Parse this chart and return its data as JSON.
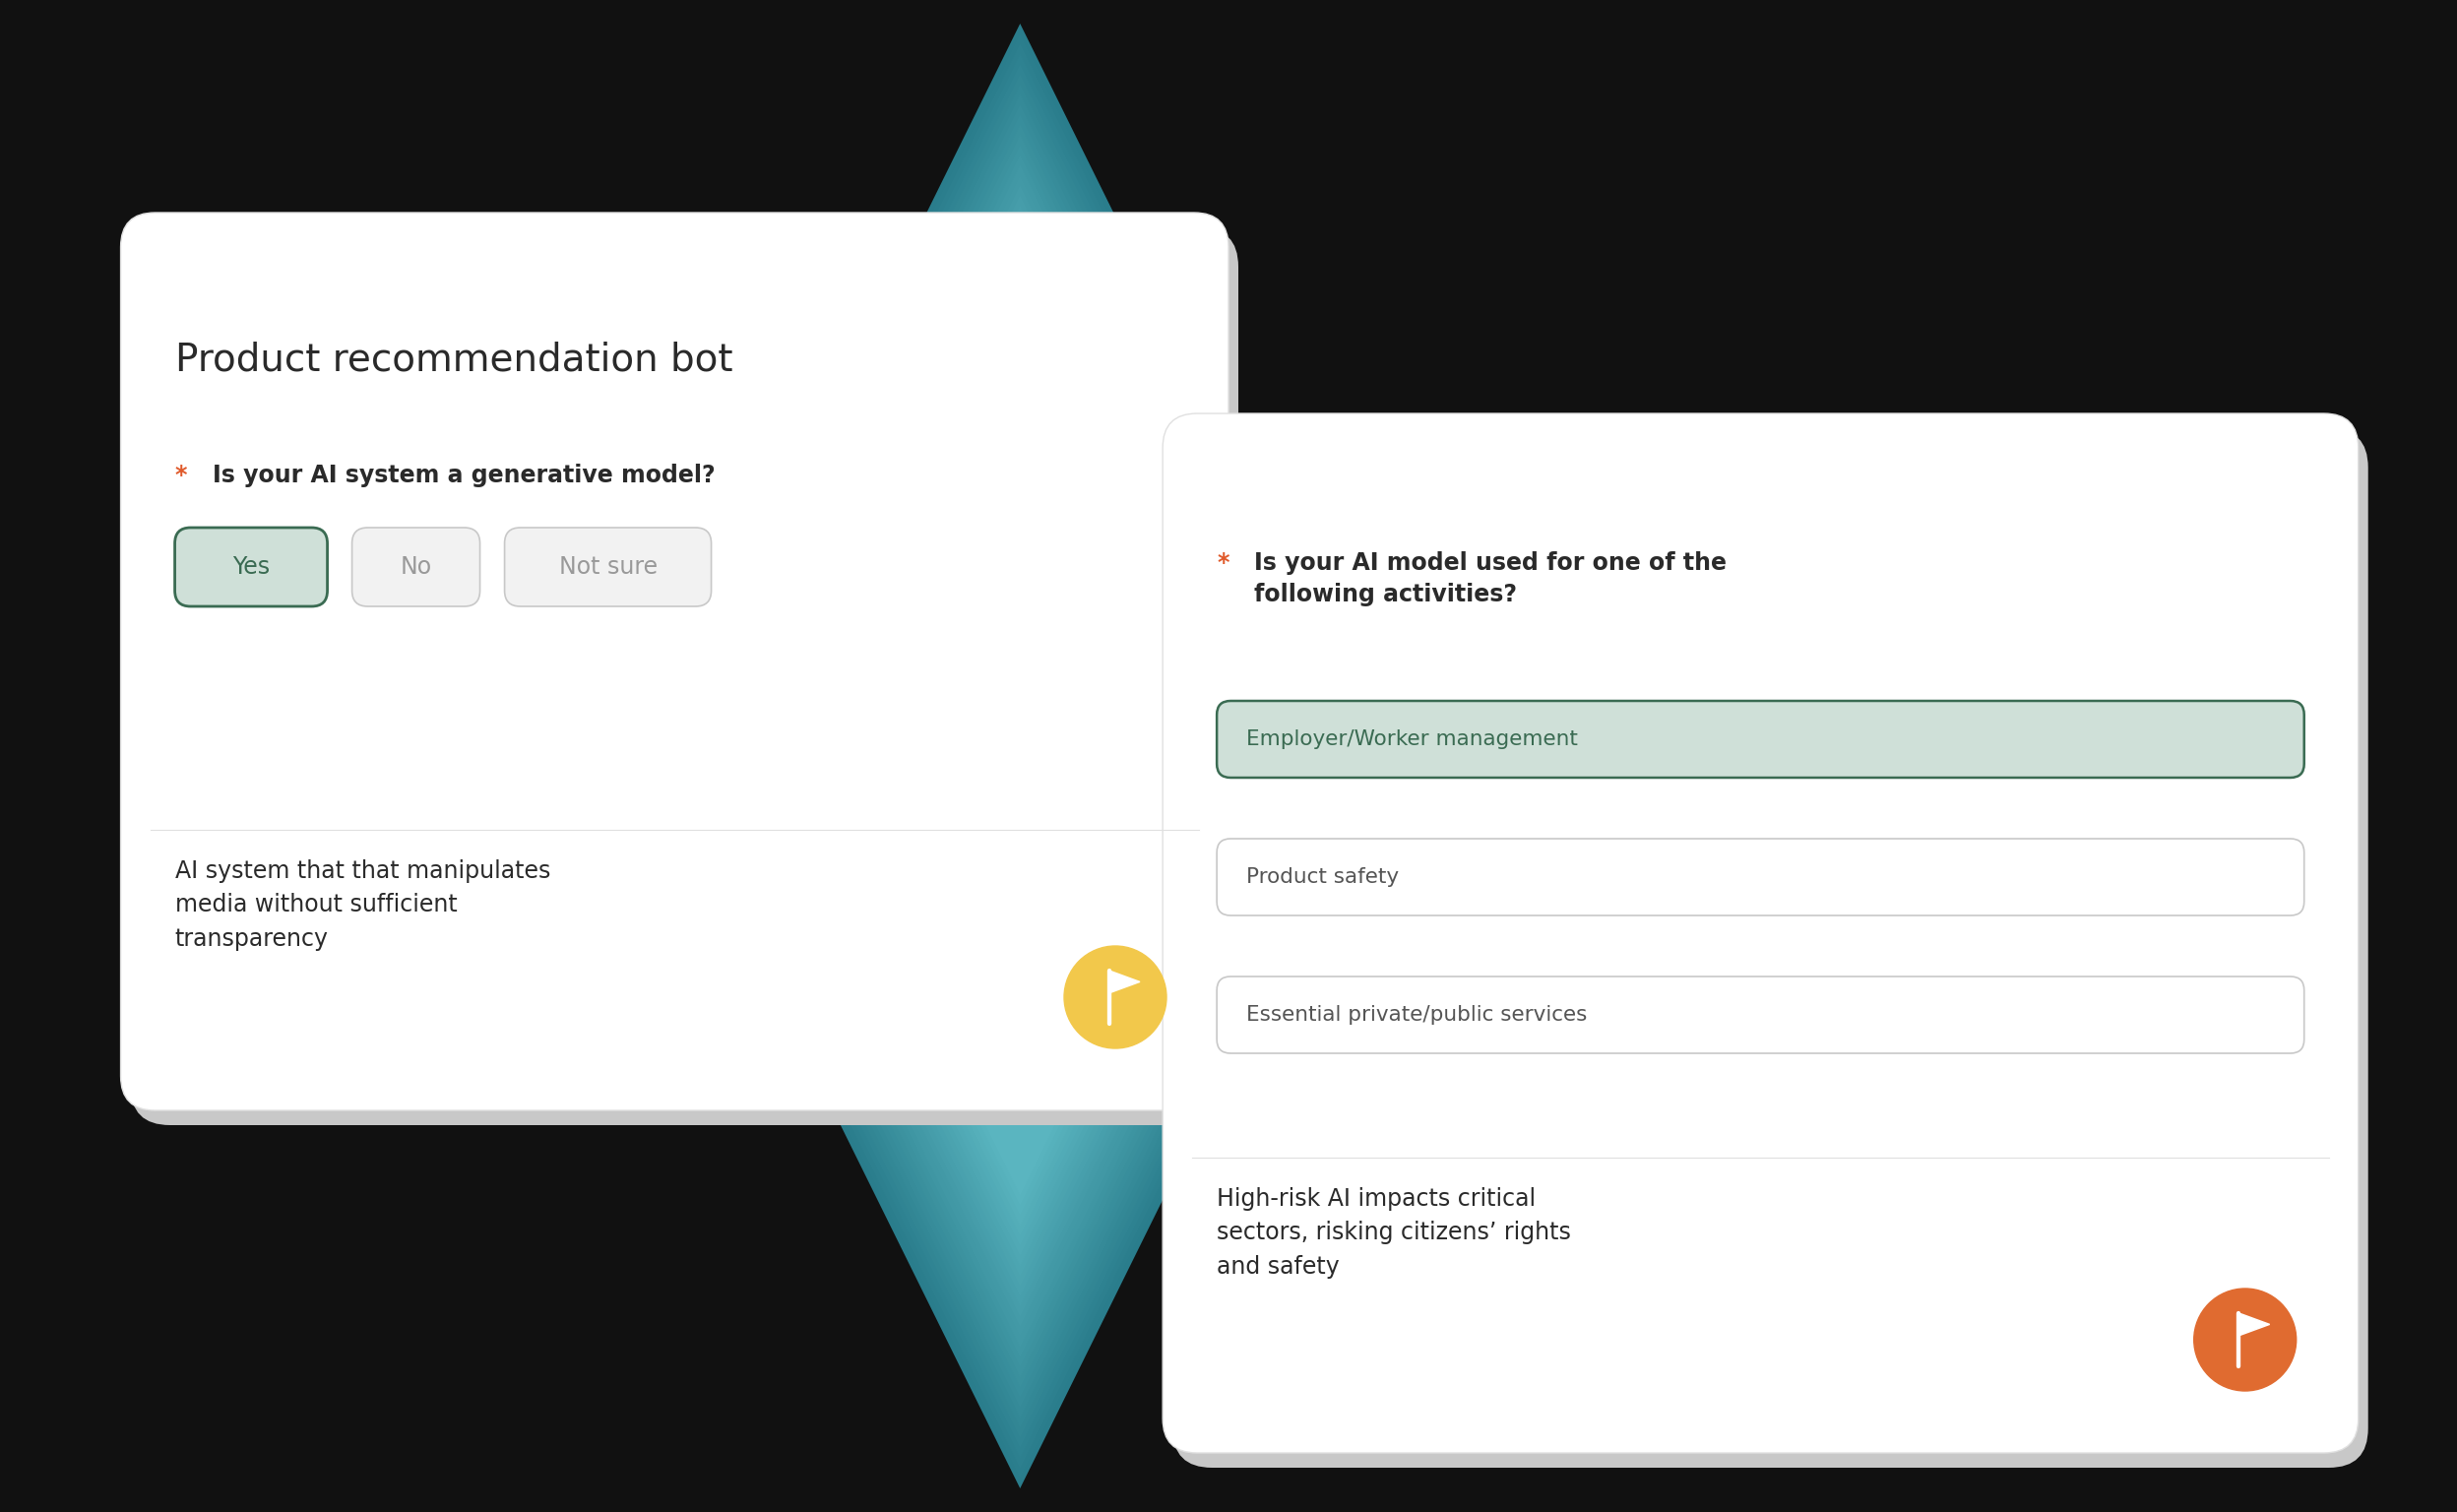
{
  "figure_bg": "#111111",
  "card1": {
    "title": "Product recommendation bot",
    "question_text": "Is your AI system a generative model?",
    "star_color": "#e05a2b",
    "btn_yes_label": "Yes",
    "btn_no_label": "No",
    "btn_notsure_label": "Not sure",
    "yes_bg": "#cfe0d8",
    "yes_border": "#3a6b52",
    "yes_text": "#3a6b52",
    "no_bg": "#f2f2f2",
    "no_border": "#c8c8c8",
    "no_text": "#999999",
    "notsure_bg": "#f2f2f2",
    "notsure_border": "#c8c8c8",
    "notsure_text": "#999999",
    "divider": "#e0e0e0",
    "desc": "AI system that that manipulates\nmedia without sufficient\ntransparency",
    "flag_color": "#f2c84b",
    "card_bg": "#ffffff",
    "title_color": "#2a2a2a",
    "text_color": "#2a2a2a"
  },
  "card2": {
    "question_text": "Is your AI model used for one of the\nfollowing activities?",
    "star_color": "#e05a2b",
    "opt1": "Employer/Worker management",
    "opt2": "Product safety",
    "opt3": "Essential private/public services",
    "opt1_bg": "#cfe0d8",
    "opt1_border": "#3a6b52",
    "opt1_text": "#3a6b52",
    "opt2_bg": "#ffffff",
    "opt2_border": "#c8c8c8",
    "opt2_text": "#555555",
    "opt3_bg": "#ffffff",
    "opt3_border": "#c8c8c8",
    "opt3_text": "#555555",
    "divider": "#e0e0e0",
    "desc": "High-risk AI impacts critical\nsectors, risking citizens’ rights\nand safety",
    "flag_color": "#e06b30",
    "card_bg": "#ffffff",
    "text_color": "#2a2a2a"
  },
  "diamond_dark": "#2a7d8c",
  "diamond_light": "#5ab5c0",
  "diamond_mid": "#3e9aaa"
}
